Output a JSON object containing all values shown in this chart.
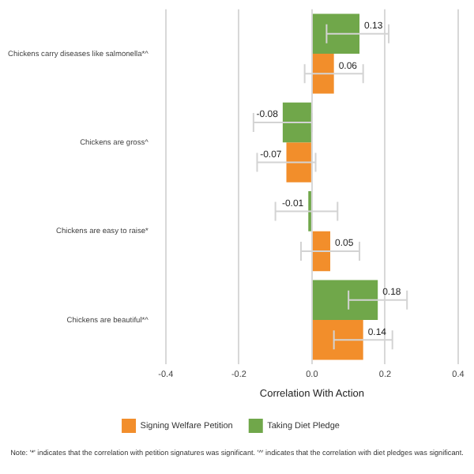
{
  "chart_data": {
    "type": "bar",
    "orientation": "horizontal",
    "xlabel": "Correlation With Action",
    "categories": [
      "Chickens carry diseases like salmonella*^",
      "Chickens are gross^",
      "Chickens are easy to raise*",
      "Chickens are beautiful*^"
    ],
    "series": [
      {
        "name": "Taking Diet Pledge",
        "color": "#70a74a",
        "values": [
          0.13,
          -0.08,
          -0.01,
          0.18
        ],
        "errors": [
          [
            0.04,
            0.21
          ],
          [
            -0.16,
            0.0
          ],
          [
            -0.1,
            0.07
          ],
          [
            0.1,
            0.26
          ]
        ],
        "value_labels": [
          "0.13",
          "-0.08",
          "-0.01",
          "0.18"
        ]
      },
      {
        "name": "Signing Welfare Petition",
        "color": "#f28e2b",
        "values": [
          0.06,
          -0.07,
          0.05,
          0.14
        ],
        "errors": [
          [
            -0.02,
            0.14
          ],
          [
            -0.15,
            0.01
          ],
          [
            -0.03,
            0.13
          ],
          [
            0.06,
            0.22
          ]
        ],
        "value_labels": [
          "0.06",
          "-0.07",
          "0.05",
          "0.14"
        ]
      }
    ],
    "xlim": [
      -0.4,
      0.4
    ],
    "xticks": [
      -0.4,
      -0.2,
      {
        "value": 0,
        "label": "0.0"
      },
      0.2,
      0.4
    ],
    "grid": "x",
    "legend": "bottom",
    "annotations": [
      "Note: '*' indicates that the correlation with petition signatures was significant. '^' indicates that the correlation with diet pledges was significant."
    ]
  }
}
